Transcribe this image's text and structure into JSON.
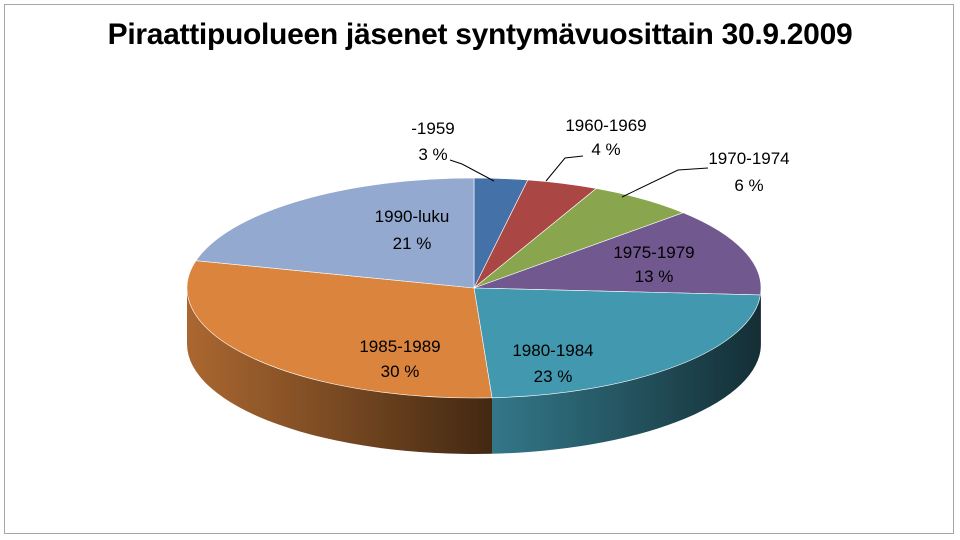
{
  "chart_data": {
    "type": "pie",
    "title": "Piraattipuolueen jäsenet syntymävuosittain 30.9.2009",
    "slices": [
      {
        "label": "-1959",
        "value": 3,
        "value_label": "3 %",
        "color": "#4472a8"
      },
      {
        "label": "1960-1969",
        "value": 4,
        "value_label": "4 %",
        "color": "#aa4643"
      },
      {
        "label": "1970-1974",
        "value": 6,
        "value_label": "6 %",
        "color": "#89a54e"
      },
      {
        "label": "1975-1979",
        "value": 13,
        "value_label": "13 %",
        "color": "#71588f"
      },
      {
        "label": "1980-1984",
        "value": 23,
        "value_label": "23 %",
        "color": "#4198af"
      },
      {
        "label": "1985-1989",
        "value": 30,
        "value_label": "30 %",
        "color": "#db843d"
      },
      {
        "label": "1990-luku",
        "value": 21,
        "value_label": "21 %",
        "color": "#93a9cf"
      }
    ],
    "legend": "none",
    "style": "3d-pie"
  }
}
